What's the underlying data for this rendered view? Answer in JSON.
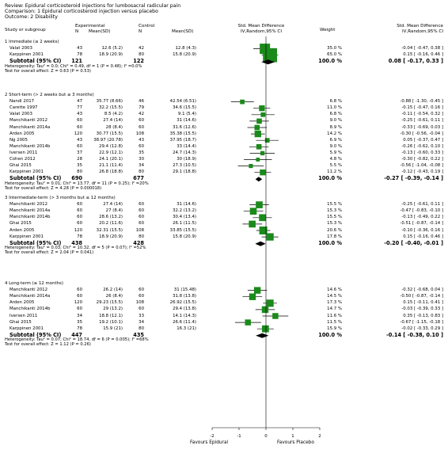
{
  "header": {
    "review": "Review:  Epidural corticosteroid injections for lumbosacral radicular pain",
    "comparison": "Comparison:  1 Epidural corticosteroid injection versus placebo",
    "outcome": "Outcome:  2 Disability"
  },
  "columns": {
    "study": "Study or subgroup",
    "exp": "Experimental",
    "ctrl": "Control",
    "n1": "N",
    "m1": "Mean(SD)",
    "n2": "N",
    "m2": "Mean(SD)",
    "smd": "Std. Mean Difference",
    "smd_sub": "IV,Random,95% CI",
    "weight": "Weight",
    "smd2": "Std. Mean Difference",
    "smd2_sub": "IV,Random,95% CI"
  },
  "colors": {
    "box": "#1a8a1a",
    "diamond": "#000000"
  },
  "axis": {
    "ticks": [
      "-2",
      "-1",
      "0",
      "1",
      "2"
    ],
    "left_label": "Favours Epidural",
    "right_label": "Favours Placebo"
  },
  "chart_data": {
    "type": "forest",
    "xlim": [
      -2,
      2
    ],
    "groups": [
      {
        "title": "1 Immediate (≤ 2 weeks)",
        "studies": [
          {
            "name": "Valat 2003",
            "n1": "43",
            "m1": "12.6 (5.2)",
            "n2": "42",
            "m2": "12.8 (4.3)",
            "weight": "35.0 %",
            "ci": "-0.04 [ -0.47, 0.38 ]",
            "est": -0.04,
            "lo": -0.47,
            "hi": 0.38,
            "w": 35.0
          },
          {
            "name": "Karppinen 2001",
            "n1": "78",
            "m1": "18.9 (20.9)",
            "n2": "80",
            "m2": "15.8 (20.9)",
            "weight": "65.0 %",
            "ci": "0.15 [ -0.16, 0.46 ]",
            "est": 0.15,
            "lo": -0.16,
            "hi": 0.46,
            "w": 65.0
          }
        ],
        "subtotal": {
          "label": "Subtotal (95% CI)",
          "n1": "121",
          "n2": "122",
          "weight": "100.0 %",
          "ci": "0.08 [ -0.17, 0.33 ]",
          "est": 0.08,
          "lo": -0.17,
          "hi": 0.33
        },
        "het": "Heterogeneity: Tau² = 0.0; Chi² = 0.49, df = 1 (P = 0.48); I² =0.0%",
        "effect": "Test for overall effect: Z = 0.63 (P = 0.53)"
      },
      {
        "title": "2 Short-term (> 2 weeks but ≤ 3 months)",
        "studies": [
          {
            "name": "Nandi 2017",
            "n1": "47",
            "m1": "35.77 (8.66)",
            "n2": "46",
            "m2": "42.54 (6.51)",
            "weight": "6.8 %",
            "ci": "-0.88 [ -1.30, -0.45 ]",
            "est": -0.88,
            "lo": -1.3,
            "hi": -0.45,
            "w": 6.8
          },
          {
            "name": "Carette 1997",
            "n1": "77",
            "m1": "32.2 (15.5)",
            "n2": "79",
            "m2": "34.6 (15.5)",
            "weight": "11.0 %",
            "ci": "-0.15 [ -0.47, 0.16 ]",
            "est": -0.15,
            "lo": -0.47,
            "hi": 0.16,
            "w": 11.0
          },
          {
            "name": "Valat 2003",
            "n1": "43",
            "m1": "8.5 (4.2)",
            "n2": "42",
            "m2": "9.1 (5.4)",
            "weight": "6.8 %",
            "ci": "-0.11 [ -0.54, 0.32 ]",
            "est": -0.11,
            "lo": -0.54,
            "hi": 0.32,
            "w": 6.8
          },
          {
            "name": "Manchikanti 2012",
            "n1": "60",
            "m1": "27.4 (14)",
            "n2": "60",
            "m2": "31 (14.6)",
            "weight": "9.0 %",
            "ci": "-0.25 [ -0.61, 0.11 ]",
            "est": -0.25,
            "lo": -0.61,
            "hi": 0.11,
            "w": 9.0
          },
          {
            "name": "Manchikanti 2014a",
            "n1": "60",
            "m1": "28 (8.4)",
            "n2": "60",
            "m2": "31.6 (12.6)",
            "weight": "8.9 %",
            "ci": "-0.33 [ -0.69, 0.03 ]",
            "est": -0.33,
            "lo": -0.69,
            "hi": 0.03,
            "w": 8.9
          },
          {
            "name": "Arden 2005",
            "n1": "120",
            "m1": "30.77 (15.5)",
            "n2": "108",
            "m2": "35.38 (15.5)",
            "weight": "14.2 %",
            "ci": "-0.30 [ -0.56, -0.04 ]",
            "est": -0.3,
            "lo": -0.56,
            "hi": -0.04,
            "w": 14.2
          },
          {
            "name": "Ng 2005",
            "n1": "43",
            "m1": "38.97 (20.78)",
            "n2": "43",
            "m2": "37.95 (18.7)",
            "weight": "6.9 %",
            "ci": "0.05 [ -0.37, 0.47 ]",
            "est": 0.05,
            "lo": -0.37,
            "hi": 0.47,
            "w": 6.9
          },
          {
            "name": "Manchikanti 2014b",
            "n1": "60",
            "m1": "29.4 (12.8)",
            "n2": "60",
            "m2": "33 (14.4)",
            "weight": "9.0 %",
            "ci": "-0.26 [ -0.62, 0.10 ]",
            "est": -0.26,
            "lo": -0.62,
            "hi": 0.1,
            "w": 9.0
          },
          {
            "name": "Iversen 2011",
            "n1": "37",
            "m1": "22.9 (12.1)",
            "n2": "35",
            "m2": "24.7 (14.3)",
            "weight": "5.9 %",
            "ci": "-0.13 [ -0.60, 0.33 ]",
            "est": -0.13,
            "lo": -0.6,
            "hi": 0.33,
            "w": 5.9
          },
          {
            "name": "Cohen 2012",
            "n1": "28",
            "m1": "24.1 (20.1)",
            "n2": "30",
            "m2": "30 (18.9)",
            "weight": "4.8 %",
            "ci": "-0.30 [ -0.82, 0.22 ]",
            "est": -0.3,
            "lo": -0.82,
            "hi": 0.22,
            "w": 4.8
          },
          {
            "name": "Ghai 2015",
            "n1": "35",
            "m1": "21.1 (11.4)",
            "n2": "34",
            "m2": "27.3 (10.5)",
            "weight": "5.5 %",
            "ci": "-0.56 [ -1.04, -0.08 ]",
            "est": -0.56,
            "lo": -1.04,
            "hi": -0.08,
            "w": 5.5
          },
          {
            "name": "Karppinen 2001",
            "n1": "80",
            "m1": "26.8 (18.8)",
            "n2": "80",
            "m2": "29.1 (18.8)",
            "weight": "11.2 %",
            "ci": "-0.12 [ -0.43, 0.19 ]",
            "est": -0.12,
            "lo": -0.43,
            "hi": 0.19,
            "w": 11.2
          }
        ],
        "subtotal": {
          "label": "Subtotal (95% CI)",
          "n1": "690",
          "n2": "677",
          "weight": "100.0 %",
          "ci": "-0.27 [ -0.39, -0.14 ]",
          "est": -0.27,
          "lo": -0.39,
          "hi": -0.14
        },
        "het": "Heterogeneity: Tau² = 0.01; Chi² = 13.77, df = 11 (P = 0.25); I² =20%",
        "effect": "Test for overall effect: Z = 4.28 (P = 0.000018)"
      },
      {
        "title": "3 Intermediate-term (> 3 months but ≤ 12 months)",
        "studies": [
          {
            "name": "Manchikanti 2012",
            "n1": "60",
            "m1": "27.4 (14)",
            "n2": "60",
            "m2": "31 (14.6)",
            "weight": "15.5 %",
            "ci": "-0.25 [ -0.61, 0.11 ]",
            "est": -0.25,
            "lo": -0.61,
            "hi": 0.11,
            "w": 15.5
          },
          {
            "name": "Manchikanti 2014a",
            "n1": "60",
            "m1": "27 (8.4)",
            "n2": "60",
            "m2": "32.2 (13.2)",
            "weight": "15.3 %",
            "ci": "-0.47 [ -0.83, -0.10 ]",
            "est": -0.47,
            "lo": -0.83,
            "hi": -0.1,
            "w": 15.3
          },
          {
            "name": "Manchikanti 2014b",
            "n1": "60",
            "m1": "28.6 (13.2)",
            "n2": "60",
            "m2": "30.4 (13.4)",
            "weight": "15.5 %",
            "ci": "-0.13 [ -0.49, 0.22 ]",
            "est": -0.13,
            "lo": -0.49,
            "hi": 0.22,
            "w": 15.5
          },
          {
            "name": "Ghai 2015",
            "n1": "60",
            "m1": "20.2 (11.6)",
            "n2": "60",
            "m2": "26.1 (11.5)",
            "weight": "15.3 %",
            "ci": "-0.51 [ -0.87, -0.14 ]",
            "est": -0.51,
            "lo": -0.87,
            "hi": -0.14,
            "w": 15.3
          },
          {
            "name": "Arden 2005",
            "n1": "120",
            "m1": "32.31 (15.5)",
            "n2": "108",
            "m2": "33.85 (15.5)",
            "weight": "20.6 %",
            "ci": "-0.10 [ -0.36, 0.16 ]",
            "est": -0.1,
            "lo": -0.36,
            "hi": 0.16,
            "w": 20.6
          },
          {
            "name": "Karppinen 2001",
            "n1": "78",
            "m1": "18.9 (20.9)",
            "n2": "80",
            "m2": "15.8 (20.9)",
            "weight": "17.8 %",
            "ci": "0.15 [ -0.16, 0.46 ]",
            "est": 0.15,
            "lo": -0.16,
            "hi": 0.46,
            "w": 17.8
          }
        ],
        "subtotal": {
          "label": "Subtotal (95% CI)",
          "n1": "438",
          "n2": "428",
          "weight": "100.0 %",
          "ci": "-0.20 [ -0.40, -0.01 ]",
          "est": -0.2,
          "lo": -0.4,
          "hi": -0.01
        },
        "het": "Heterogeneity: Tau² = 0.03; Chi² = 10.32, df = 5 (P = 0.07); I² =52%",
        "effect": "Test for overall effect: Z = 2.04 (P = 0.041)"
      },
      {
        "title": "4 Long-term (≥ 12 months)",
        "studies": [
          {
            "name": "Manchikanti 2012",
            "n1": "60",
            "m1": "26.2 (14)",
            "n2": "60",
            "m2": "31 (15.48)",
            "weight": "14.6 %",
            "ci": "-0.32 [ -0.68, 0.04 ]",
            "est": -0.32,
            "lo": -0.68,
            "hi": 0.04,
            "w": 14.6
          },
          {
            "name": "Manchikanti 2014a",
            "n1": "60",
            "m1": "26 (8.4)",
            "n2": "60",
            "m2": "31.8 (13.8)",
            "weight": "14.5 %",
            "ci": "-0.50 [ -0.87, -0.14 ]",
            "est": -0.5,
            "lo": -0.87,
            "hi": -0.14,
            "w": 14.5
          },
          {
            "name": "Arden 2005",
            "n1": "120",
            "m1": "29.23 (15.5)",
            "n2": "108",
            "m2": "26.92 (15.5)",
            "weight": "17.3 %",
            "ci": "0.15 [ -0.11, 0.41 ]",
            "est": 0.15,
            "lo": -0.11,
            "hi": 0.41,
            "w": 17.3
          },
          {
            "name": "Manchikanti 2014b",
            "n1": "60",
            "m1": "29 (13.2)",
            "n2": "60",
            "m2": "29.4 (13.8)",
            "weight": "14.7 %",
            "ci": "-0.03 [ -0.39, 0.33 ]",
            "est": -0.03,
            "lo": -0.39,
            "hi": 0.33,
            "w": 14.7
          },
          {
            "name": "Iversen 2011",
            "n1": "34",
            "m1": "18.8 (12.1)",
            "n2": "33",
            "m2": "14.1 (14.3)",
            "weight": "11.6 %",
            "ci": "0.35 [ -0.13, 0.83 ]",
            "est": 0.35,
            "lo": -0.13,
            "hi": 0.83,
            "w": 11.6
          },
          {
            "name": "Ghai 2015",
            "n1": "35",
            "m1": "19.2 (10.1)",
            "n2": "34",
            "m2": "26.6 (11.4)",
            "weight": "11.5 %",
            "ci": "-0.67 [ -1.15, -0.18 ]",
            "est": -0.67,
            "lo": -1.15,
            "hi": -0.18,
            "w": 11.5
          },
          {
            "name": "Karppinen 2001",
            "n1": "78",
            "m1": "15.9 (21)",
            "n2": "80",
            "m2": "16.3 (21)",
            "weight": "15.9 %",
            "ci": "-0.02 [ -0.33, 0.29 ]",
            "est": -0.02,
            "lo": -0.33,
            "hi": 0.29,
            "w": 15.9
          }
        ],
        "subtotal": {
          "label": "Subtotal (95% CI)",
          "n1": "447",
          "n2": "435",
          "weight": "100.0 %",
          "ci": "-0.14 [ -0.38, 0.10 ]",
          "est": -0.14,
          "lo": -0.38,
          "hi": 0.1
        },
        "het": "Heterogeneity: Tau² = 0.07; Chi² = 18.74, df = 6 (P = 0.005); I² =68%",
        "effect": "Test for overall effect: Z = 1.12 (P = 0.26)"
      }
    ]
  }
}
